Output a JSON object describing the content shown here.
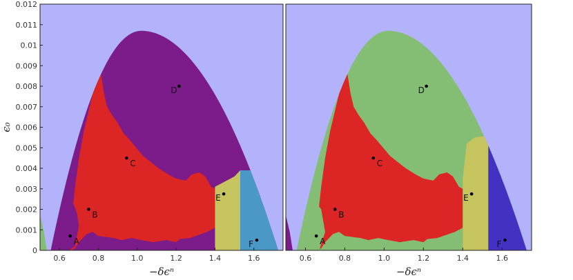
{
  "chart_data": [
    {
      "type": "heatmap",
      "xlabel": "−δϵⁿ",
      "ylabel": "ϵ₀",
      "xlim": [
        0.5,
        1.75
      ],
      "ylim": [
        0,
        0.012
      ],
      "xticks": [
        "0.6",
        "0.8",
        "1.0",
        "1.2",
        "1.4",
        "1.6"
      ],
      "yticks": [
        "0",
        "0.001",
        "0.002",
        "0.003",
        "0.004",
        "0.005",
        "0.006",
        "0.007",
        "0.008",
        "0.009",
        "0.01",
        "0.011",
        "0.012"
      ],
      "background_color": "#b3b3fb",
      "region_colors": {
        "red": "#dc2525",
        "purple": "#7b1c8a",
        "olive": "#c5c45e",
        "teal": "#4a98c6",
        "green": "#84bd74"
      },
      "dome": {
        "left": 0.555,
        "right": 1.725,
        "peak_x": 1.02,
        "peak_y": 0.0107
      },
      "points": [
        {
          "name": "A",
          "x": 0.655,
          "y": 0.0007
        },
        {
          "name": "B",
          "x": 0.75,
          "y": 0.002
        },
        {
          "name": "C",
          "x": 0.945,
          "y": 0.0045
        },
        {
          "name": "D",
          "x": 1.215,
          "y": 0.008
        },
        {
          "name": "E",
          "x": 1.445,
          "y": 0.00275
        },
        {
          "name": "F",
          "x": 1.615,
          "y": 0.0005
        }
      ]
    },
    {
      "type": "heatmap",
      "xlabel": "−δϵⁿ",
      "ylabel": "",
      "xlim": [
        0.5,
        1.75
      ],
      "ylim": [
        0,
        0.012
      ],
      "xticks": [
        "0.6",
        "0.8",
        "1.0",
        "1.2",
        "1.4",
        "1.6"
      ],
      "background_color": "#b3b3fb",
      "region_colors": {
        "red": "#dc2525",
        "green": "#84bd74",
        "olive": "#c5c45e",
        "blue": "#4331c1",
        "purple": "#7b1c8a"
      },
      "dome": {
        "left": 0.555,
        "right": 1.725,
        "peak_x": 1.02,
        "peak_y": 0.0107
      },
      "points": [
        {
          "name": "A",
          "x": 0.655,
          "y": 0.0007
        },
        {
          "name": "B",
          "x": 0.75,
          "y": 0.002
        },
        {
          "name": "C",
          "x": 0.945,
          "y": 0.0045
        },
        {
          "name": "D",
          "x": 1.215,
          "y": 0.008
        },
        {
          "name": "E",
          "x": 1.445,
          "y": 0.00275
        },
        {
          "name": "F",
          "x": 1.615,
          "y": 0.0005
        }
      ]
    }
  ]
}
